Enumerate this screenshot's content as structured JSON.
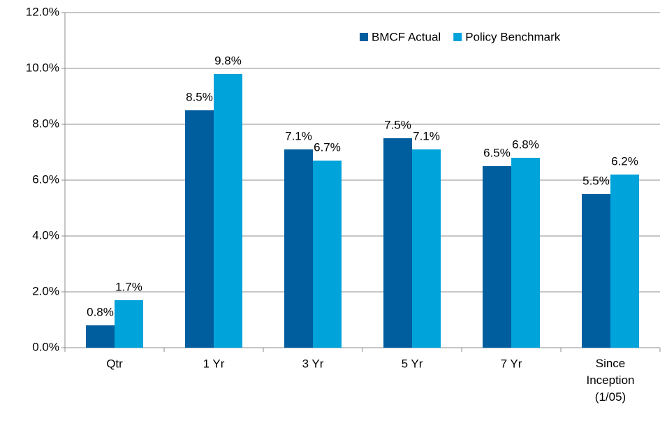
{
  "chart_data": {
    "type": "bar",
    "categories": [
      "Qtr",
      "1 Yr",
      "3 Yr",
      "5 Yr",
      "7 Yr",
      "Since Inception (1/05)"
    ],
    "series": [
      {
        "name": "BMCF Actual",
        "color": "#005e9e",
        "values": [
          0.8,
          8.5,
          7.1,
          7.5,
          6.5,
          5.5
        ],
        "value_labels": [
          "0.8%",
          "8.5%",
          "7.1%",
          "7.5%",
          "6.5%",
          "5.5%"
        ]
      },
      {
        "name": "Policy Benchmark",
        "color": "#00a3da",
        "values": [
          1.7,
          9.8,
          6.7,
          7.1,
          6.8,
          6.2
        ],
        "value_labels": [
          "1.7%",
          "9.8%",
          "6.7%",
          "7.1%",
          "6.8%",
          "6.2%"
        ]
      }
    ],
    "ylim": [
      0,
      12
    ],
    "yticks": [
      {
        "value": 0,
        "label": "0.0%"
      },
      {
        "value": 2,
        "label": "2.0%"
      },
      {
        "value": 4,
        "label": "4.0%"
      },
      {
        "value": 6,
        "label": "6.0%"
      },
      {
        "value": 8,
        "label": "8.0%"
      },
      {
        "value": 10,
        "label": "10.0%"
      },
      {
        "value": 12,
        "label": "12.0%"
      }
    ],
    "grid": true,
    "legend": "upper right"
  }
}
